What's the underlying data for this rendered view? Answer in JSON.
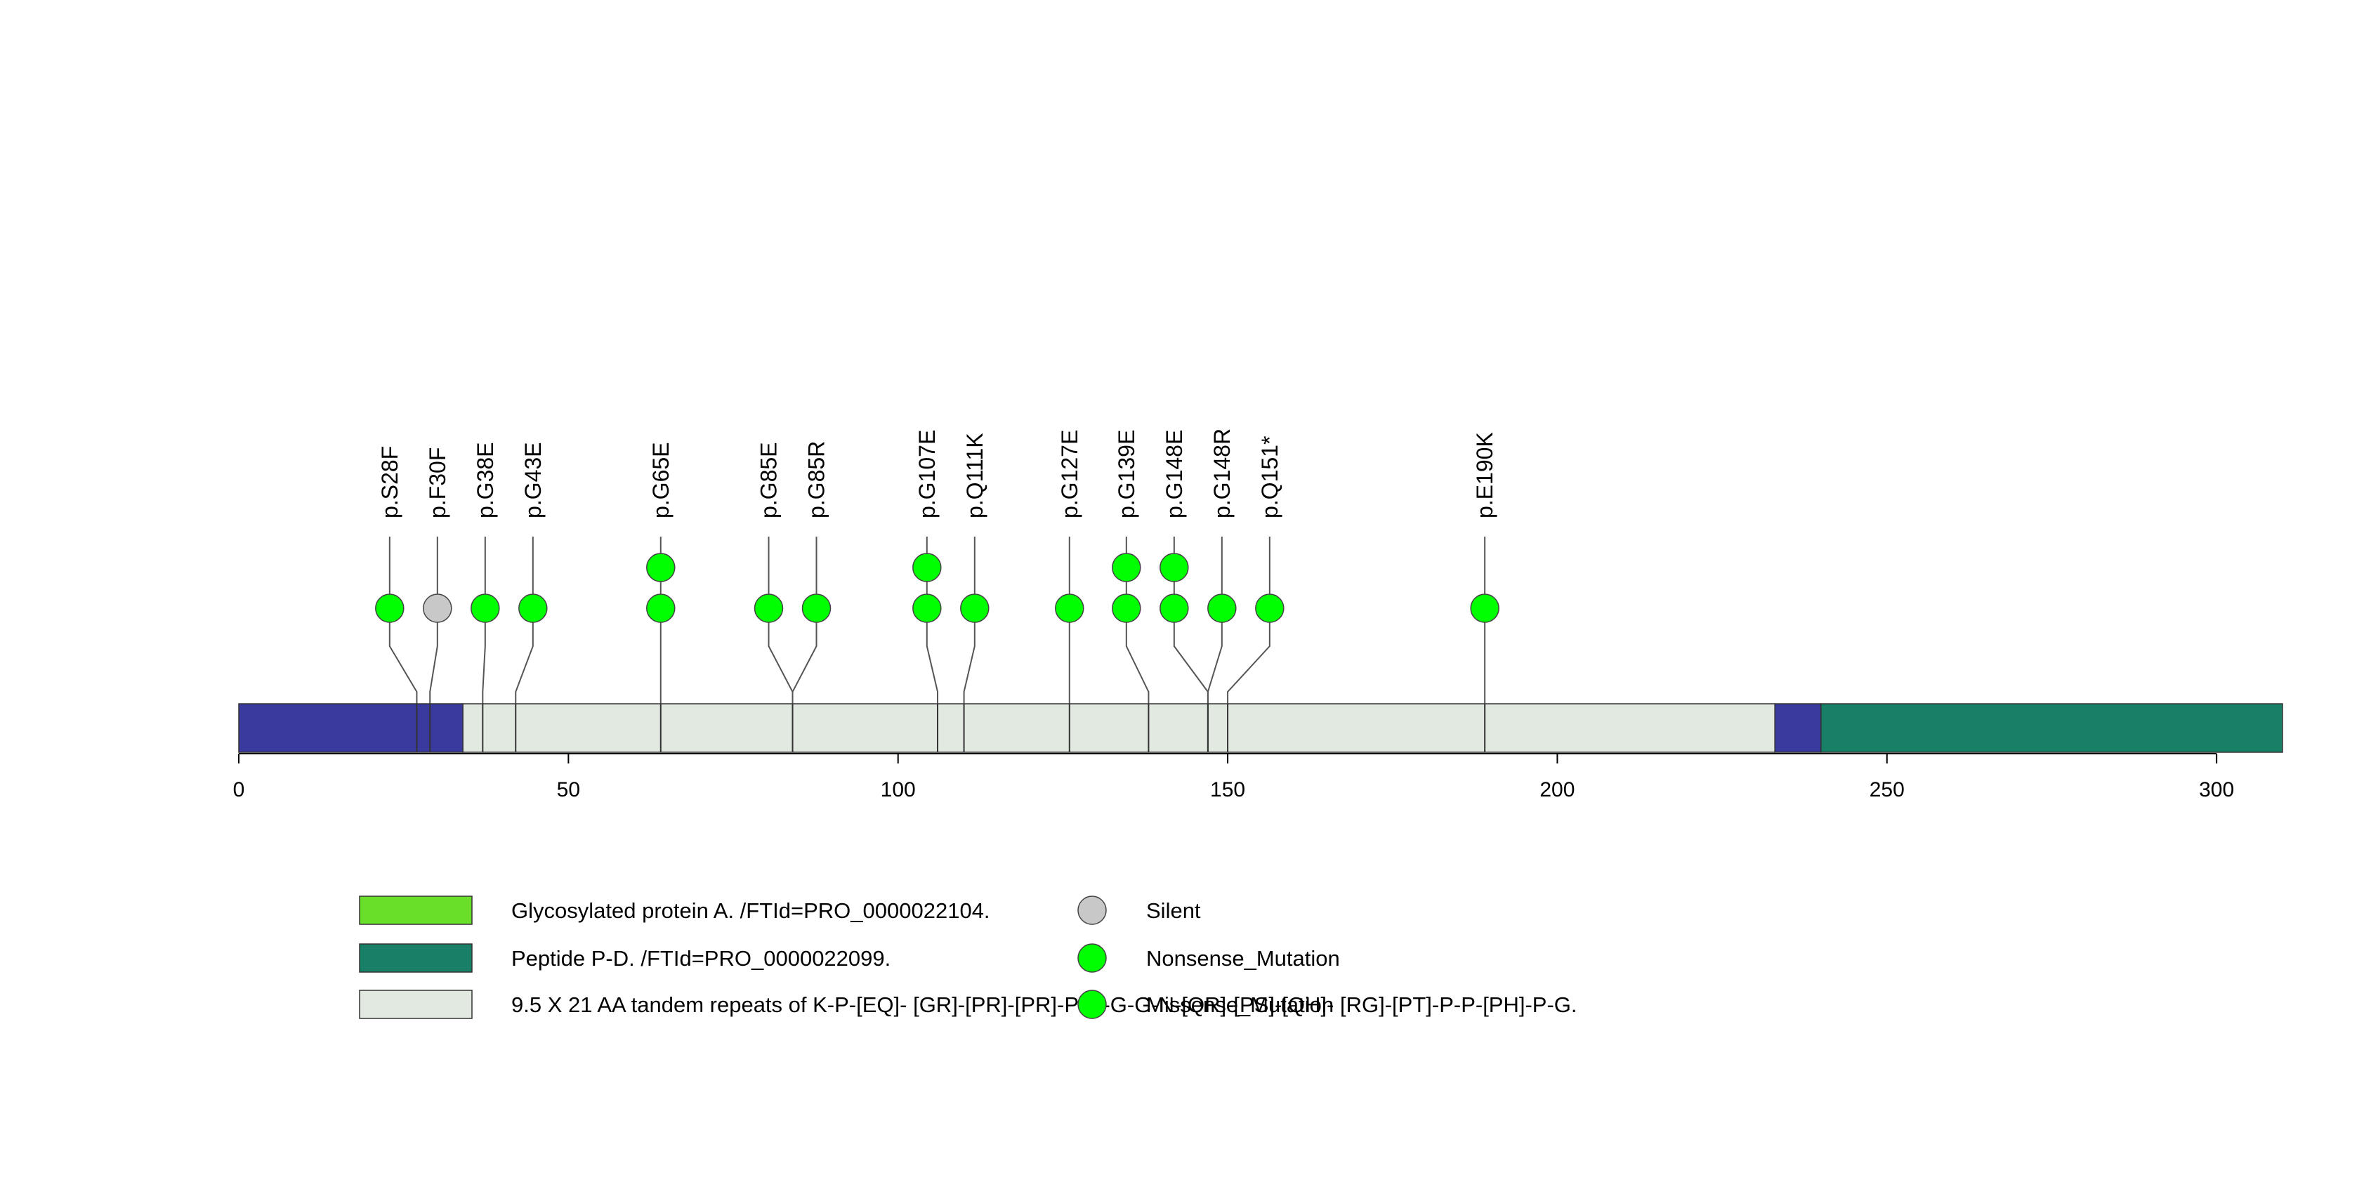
{
  "chart_data": {
    "type": "lollipop",
    "xlim": [
      0,
      310
    ],
    "x_ticks": [
      0,
      50,
      100,
      150,
      200,
      250,
      300
    ],
    "protein_length": 310,
    "domains": [
      {
        "start": 0,
        "end": 34,
        "color": "#3A3A9E"
      },
      {
        "start": 34,
        "end": 233,
        "color": "#E1E9E1"
      },
      {
        "start": 233,
        "end": 240,
        "color": "#3A3A9E"
      },
      {
        "start": 240,
        "end": 310,
        "color": "#188066"
      }
    ],
    "mutations": [
      {
        "label": "p.S28F",
        "position": 27,
        "count": 1,
        "color": "#00FF00"
      },
      {
        "label": "p.F30F",
        "position": 29,
        "count": 1,
        "color": "#C8C8C8"
      },
      {
        "label": "p.G38E",
        "position": 37,
        "count": 1,
        "color": "#00FF00"
      },
      {
        "label": "p.G43E",
        "position": 42,
        "count": 1,
        "color": "#00FF00"
      },
      {
        "label": "p.G65E",
        "position": 64,
        "count": 2,
        "color": "#00FF00"
      },
      {
        "label": "p.G85E",
        "position": 84,
        "count": 1,
        "color": "#00FF00"
      },
      {
        "label": "p.G85R",
        "position": 84,
        "count": 1,
        "color": "#00FF00"
      },
      {
        "label": "p.G107E",
        "position": 106,
        "count": 2,
        "color": "#00FF00"
      },
      {
        "label": "p.Q111K",
        "position": 110,
        "count": 1,
        "color": "#00FF00"
      },
      {
        "label": "p.G127E",
        "position": 126,
        "count": 1,
        "color": "#00FF00"
      },
      {
        "label": "p.G139E",
        "position": 138,
        "count": 2,
        "color": "#00FF00"
      },
      {
        "label": "p.G148E",
        "position": 147,
        "count": 2,
        "color": "#00FF00"
      },
      {
        "label": "p.G148R",
        "position": 147,
        "count": 1,
        "color": "#00FF00"
      },
      {
        "label": "p.Q151*",
        "position": 150,
        "count": 1,
        "color": "#00FF00"
      },
      {
        "label": "p.E190K",
        "position": 189,
        "count": 1,
        "color": "#00FF00"
      }
    ],
    "legend_domains": [
      {
        "label": "Glycosylated protein A. /FTId=PRO_0000022104.",
        "color": "#6ADF2A"
      },
      {
        "label": "Peptide P-D. /FTId=PRO_0000022099.",
        "color": "#188066"
      },
      {
        "label": "9.5 X 21 AA tandem repeats of K-P-[EQ]- [GR]-[PR]-[PR]-P-Q-G-G-N-[QR]-[PS]-[QH]- [RG]-[PT]-P-P-[PH]-P-G.",
        "color": "#E1E9E1"
      }
    ],
    "legend_mutations": [
      {
        "label": "Silent",
        "color": "#C8C8C8"
      },
      {
        "label": "Nonsense_Mutation",
        "color": "#00FF00"
      },
      {
        "label": "Missense_Mutation",
        "color": "#00FF00"
      }
    ]
  }
}
